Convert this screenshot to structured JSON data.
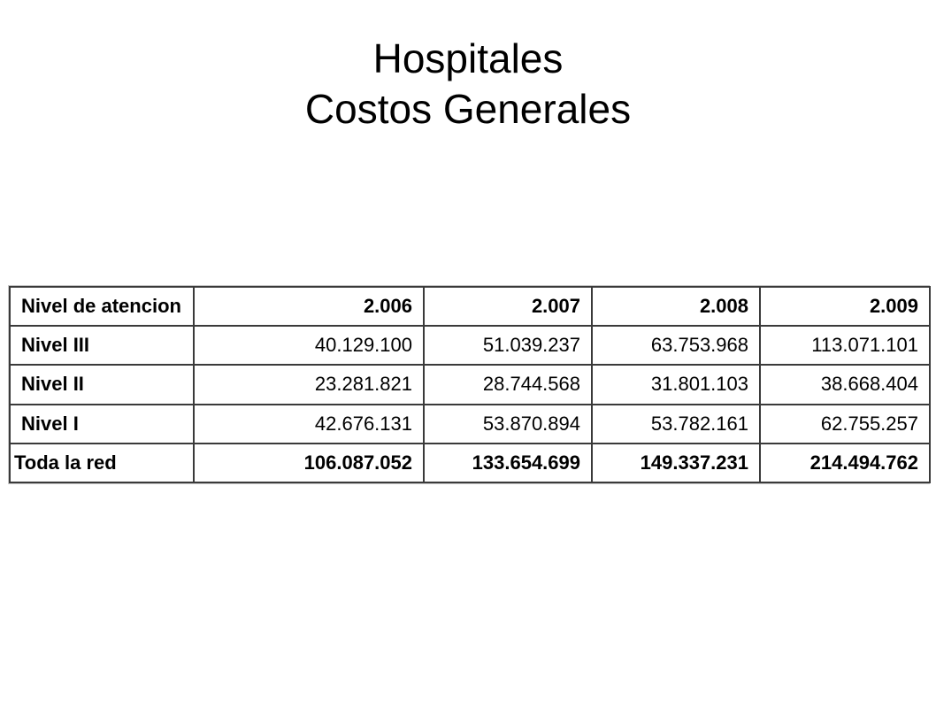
{
  "slide": {
    "title_line1": "Hospitales",
    "title_line2": "Costos Generales"
  },
  "table": {
    "header": {
      "label": "Nivel de atencion",
      "years": [
        "2.006",
        "2.007",
        "2.008",
        "2.009"
      ]
    },
    "rows": [
      {
        "label": "Nivel III",
        "values": [
          "40.129.100",
          "51.039.237",
          "63.753.968",
          "113.071.101"
        ]
      },
      {
        "label": "Nivel II",
        "values": [
          "23.281.821",
          "28.744.568",
          "31.801.103",
          "38.668.404"
        ]
      },
      {
        "label": "Nivel I",
        "values": [
          "42.676.131",
          "53.870.894",
          "53.782.161",
          "62.755.257"
        ]
      }
    ],
    "total": {
      "label": "Toda la red",
      "values": [
        "106.087.052",
        "133.654.699",
        "149.337.231",
        "214.494.762"
      ]
    }
  }
}
